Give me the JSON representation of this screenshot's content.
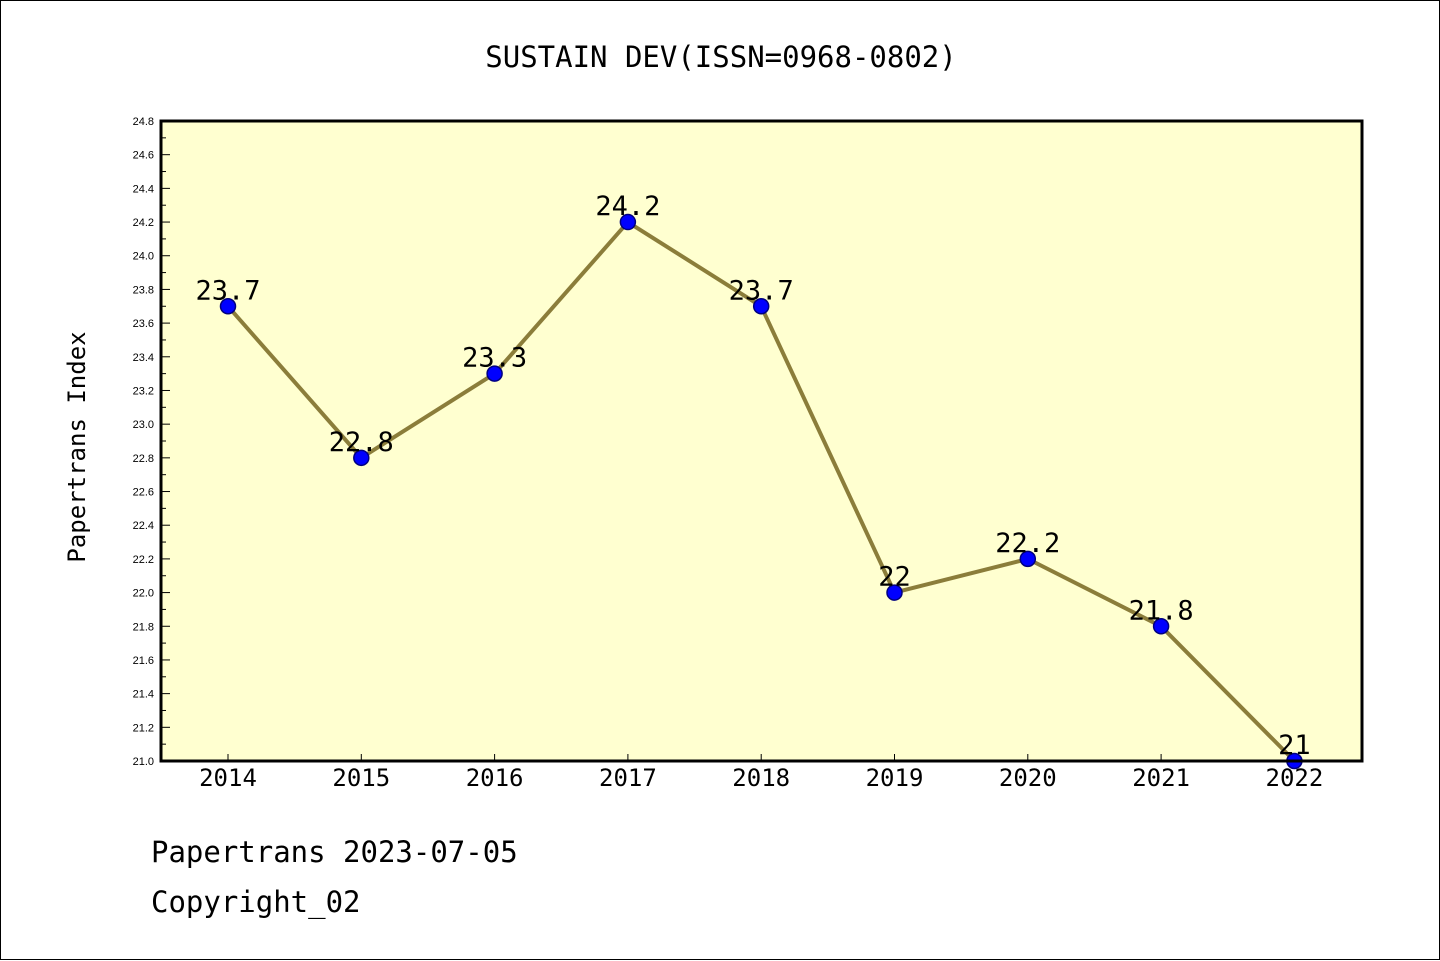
{
  "chart_data": {
    "type": "line",
    "title": "SUSTAIN DEV(ISSN=0968-0802)",
    "xlabel": "",
    "ylabel": "Papertrans Index",
    "categories": [
      "2014",
      "2015",
      "2016",
      "2017",
      "2018",
      "2019",
      "2020",
      "2021",
      "2022"
    ],
    "series": [
      {
        "values": [
          23.7,
          22.8,
          23.3,
          24.2,
          23.7,
          22.0,
          22.2,
          21.8,
          21.0
        ],
        "data_labels": [
          "23.7",
          "22.8",
          "23.3",
          "24.2",
          "23.7",
          "22",
          "22.2",
          "21.8",
          "21"
        ]
      }
    ],
    "ylim": [
      21.0,
      24.8
    ],
    "yticks": [
      "21.0",
      "21.2",
      "21.4",
      "21.6",
      "21.8",
      "22.0",
      "22.2",
      "22.4",
      "22.6",
      "22.8",
      "23.0",
      "23.2",
      "23.4",
      "23.6",
      "23.8",
      "24.0",
      "24.2",
      "24.4",
      "24.6",
      "24.8"
    ],
    "grid": false,
    "legend": "none",
    "colors": {
      "plot_background": "#ffffd0",
      "line": "#8b7d3a",
      "marker_fill": "#0000ff",
      "marker_edge": "#000080",
      "axes": "#000000"
    }
  },
  "footer": {
    "line1": "Papertrans 2023-07-05",
    "line2": "Copyright_02"
  }
}
